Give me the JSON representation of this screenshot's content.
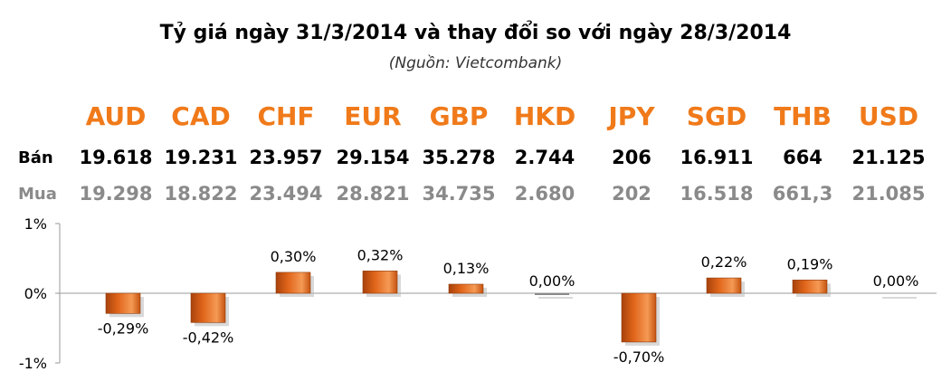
{
  "title": "Tỷ giá ngày 31/3/2014 và thay đổi so với ngày 28/3/2014",
  "subtitle": "(Nguồn: Vietcombank)",
  "row_labels": {
    "sell": "Bán",
    "buy": "Mua"
  },
  "colors": {
    "currency": "#f07a1a",
    "bar": "#e0651a",
    "buy_text": "#8a8a8a"
  },
  "currencies": [
    "AUD",
    "CAD",
    "CHF",
    "EUR",
    "GBP",
    "HKD",
    "JPY",
    "SGD",
    "THB",
    "USD"
  ],
  "sell_rates": [
    "19.618",
    "19.231",
    "23.957",
    "29.154",
    "35.278",
    "2.744",
    "206",
    "16.911",
    "664",
    "21.125"
  ],
  "buy_rates": [
    "19.298",
    "18.822",
    "23.494",
    "28.821",
    "34.735",
    "2.680",
    "202",
    "16.518",
    "661,3",
    "21.085"
  ],
  "chart_data": {
    "type": "bar",
    "categories": [
      "AUD",
      "CAD",
      "CHF",
      "EUR",
      "GBP",
      "HKD",
      "JPY",
      "SGD",
      "THB",
      "USD"
    ],
    "values": [
      -0.29,
      -0.42,
      0.3,
      0.32,
      0.13,
      0.0,
      -0.7,
      0.22,
      0.19,
      0.0
    ],
    "data_labels": [
      "-0,29%",
      "-0,42%",
      "0,30%",
      "0,32%",
      "0,13%",
      "0,00%",
      "-0,70%",
      "0,22%",
      "0,19%",
      "0,00%"
    ],
    "yticks": [
      "1%",
      "0%",
      "-1%"
    ],
    "ytick_values": [
      1,
      0,
      -1
    ],
    "ylim": [
      -1,
      1
    ],
    "grid": false
  }
}
